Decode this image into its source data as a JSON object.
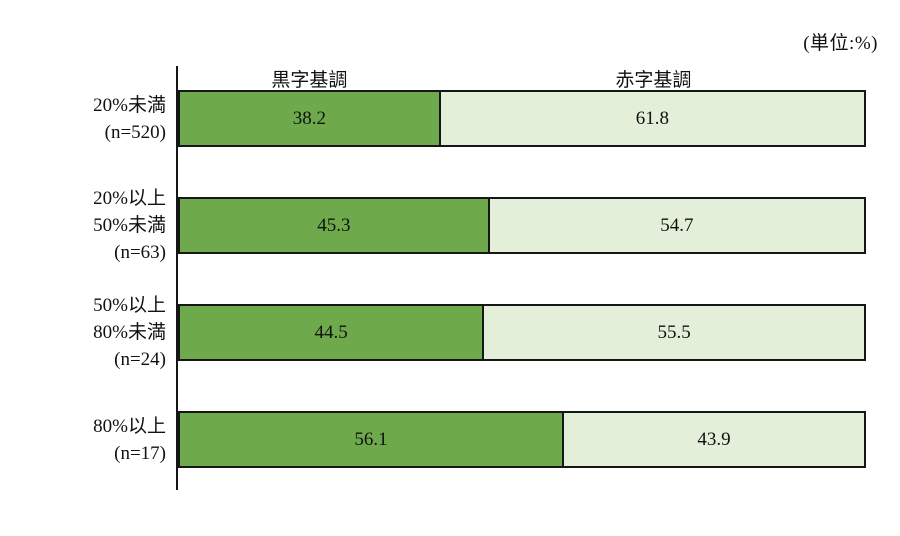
{
  "unit_label": "(単位:%)",
  "colors": {
    "surplus": "#6EAA4B",
    "deficit": "#E3EFD9",
    "border": "#161616",
    "axis": "#161616",
    "text": "#111111",
    "background": "#ffffff"
  },
  "chart_data": {
    "type": "bar",
    "orientation": "horizontal",
    "stacked": true,
    "unit": "%",
    "unit_note": "(単位:%)",
    "xlim": [
      0,
      100
    ],
    "grid": false,
    "legend_position": "top",
    "categories": [
      "20%未満\n(n=520)",
      "20%以上\n50%未満\n(n=63)",
      "50%以上\n80%未満\n(n=24)",
      "80%以上\n(n=17)"
    ],
    "series": [
      {
        "name": "黒字基調",
        "values": [
          38.2,
          45.3,
          44.5,
          56.1
        ]
      },
      {
        "name": "赤字基調",
        "values": [
          61.8,
          54.7,
          55.5,
          43.9
        ]
      }
    ]
  }
}
